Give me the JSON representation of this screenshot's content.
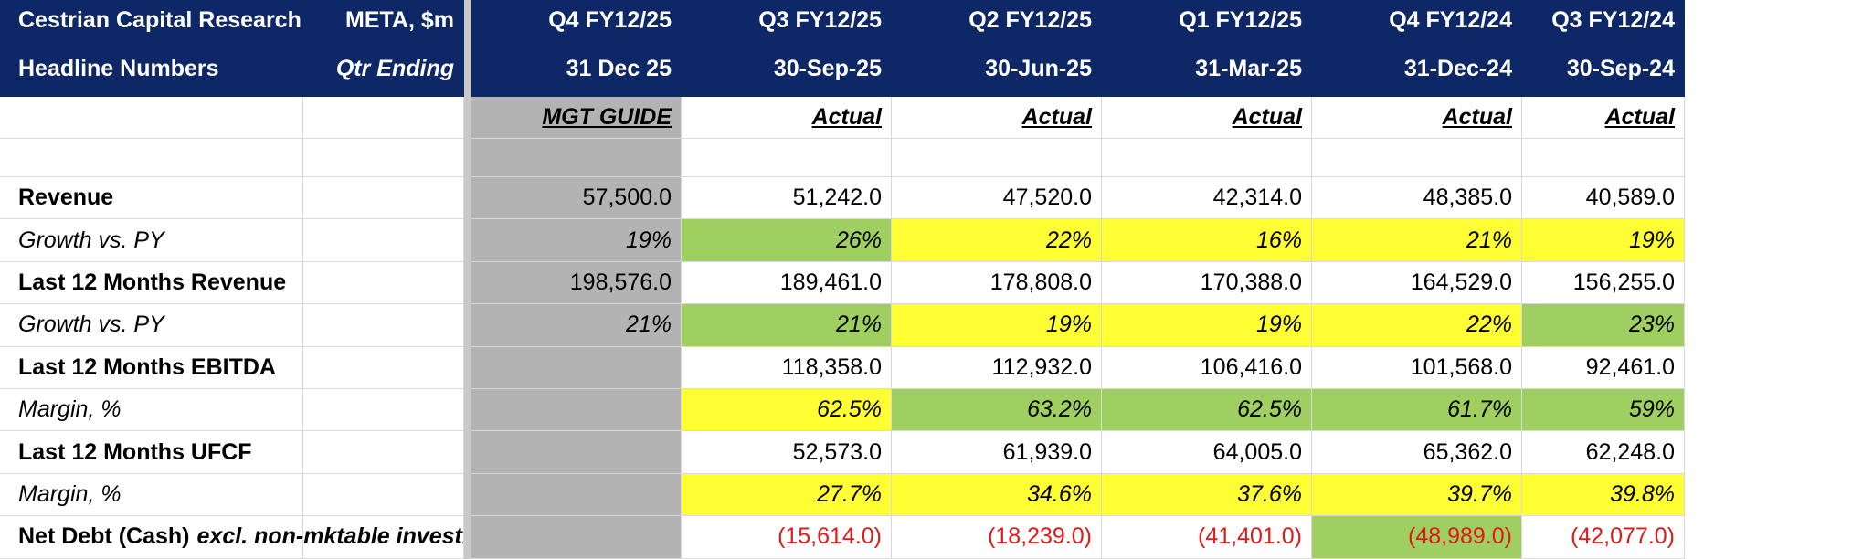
{
  "header": {
    "company": "Cestrian Capital Research, Inc",
    "ticker": "META, $m",
    "subtitle": "Headline Numbers",
    "qtr_ending": "Qtr Ending",
    "periods": [
      {
        "period": "Q4 FY12/25",
        "date": "31 Dec 25"
      },
      {
        "period": "Q3 FY12/25",
        "date": "30-Sep-25"
      },
      {
        "period": "Q2 FY12/25",
        "date": "30-Jun-25"
      },
      {
        "period": "Q1 FY12/25",
        "date": "31-Mar-25"
      },
      {
        "period": "Q4 FY12/24",
        "date": "31-Dec-24"
      },
      {
        "period": "Q3 FY12/24",
        "date": "30-Sep-24"
      }
    ]
  },
  "basis": [
    "MGT GUIDE",
    "Actual",
    "Actual",
    "Actual",
    "Actual",
    "Actual"
  ],
  "rows": [
    {
      "label": "Revenue",
      "label_suffix": "",
      "values": [
        "57,500.0",
        "51,242.0",
        "47,520.0",
        "42,314.0",
        "48,385.0",
        "40,589.0"
      ]
    },
    {
      "label": "Growth vs. PY",
      "label_suffix": "",
      "values": [
        "19%",
        "26%",
        "22%",
        "16%",
        "21%",
        "19%"
      ]
    },
    {
      "label": "Last 12 Months Revenue",
      "label_suffix": "",
      "values": [
        "198,576.0",
        "189,461.0",
        "178,808.0",
        "170,388.0",
        "164,529.0",
        "156,255.0"
      ]
    },
    {
      "label": "Growth vs. PY",
      "label_suffix": "",
      "values": [
        "21%",
        "21%",
        "19%",
        "19%",
        "22%",
        "23%"
      ]
    },
    {
      "label": "Last 12 Months EBITDA",
      "label_suffix": "",
      "values": [
        "",
        "118,358.0",
        "112,932.0",
        "106,416.0",
        "101,568.0",
        "92,461.0"
      ]
    },
    {
      "label": "Margin, %",
      "label_suffix": "",
      "values": [
        "",
        "62.5%",
        "63.2%",
        "62.5%",
        "61.7%",
        "59%"
      ]
    },
    {
      "label": "Last 12 Months UFCF",
      "label_suffix": "",
      "values": [
        "",
        "52,573.0",
        "61,939.0",
        "64,005.0",
        "65,362.0",
        "62,248.0"
      ]
    },
    {
      "label": "Margin, %",
      "label_suffix": "",
      "values": [
        "",
        "27.7%",
        "34.6%",
        "37.6%",
        "39.7%",
        "39.8%"
      ]
    },
    {
      "label": "Net Debt (Cash)",
      "label_suffix": "excl. non-mktable investments",
      "values": [
        "",
        "(15,614.0)",
        "(18,239.0)",
        "(41,401.0)",
        "(48,989.0)",
        "(42,077.0)"
      ]
    }
  ],
  "colors": {
    "header_bg": "#0e2766",
    "guide_bg": "#b3b3b3",
    "green": "#9fcf60",
    "yellow": "#ffff33",
    "negative": "#e01a1a"
  }
}
